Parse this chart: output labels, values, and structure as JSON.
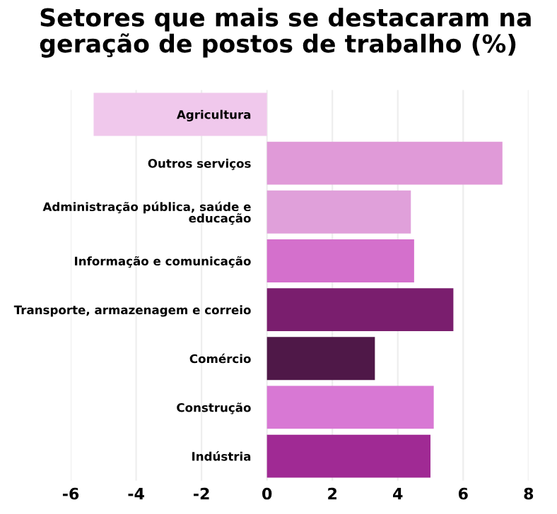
{
  "chart_data": {
    "type": "bar",
    "orientation": "horizontal",
    "title": "Setores que mais se destacaram na\ngeração de postos de trabalho (%)",
    "categories": [
      "Agricultura",
      "Outros serviços",
      "Administração pública, saúde e\neducação",
      "Informação e comunicação",
      "Transporte, armazenagem e correio",
      "Comércio",
      "Construção",
      "Indústria"
    ],
    "values": [
      -5.3,
      7.2,
      4.4,
      4.5,
      5.7,
      3.3,
      5.1,
      5.0
    ],
    "colors": [
      "#f0c8ec",
      "#e09ad8",
      "#e0a0da",
      "#d470cc",
      "#7a1e6e",
      "#4f1848",
      "#d878d4",
      "#a02a94"
    ],
    "xlim": [
      -6,
      8
    ],
    "xticks": [
      -6,
      -4,
      -2,
      0,
      2,
      4,
      6,
      8
    ],
    "grid": "x"
  }
}
